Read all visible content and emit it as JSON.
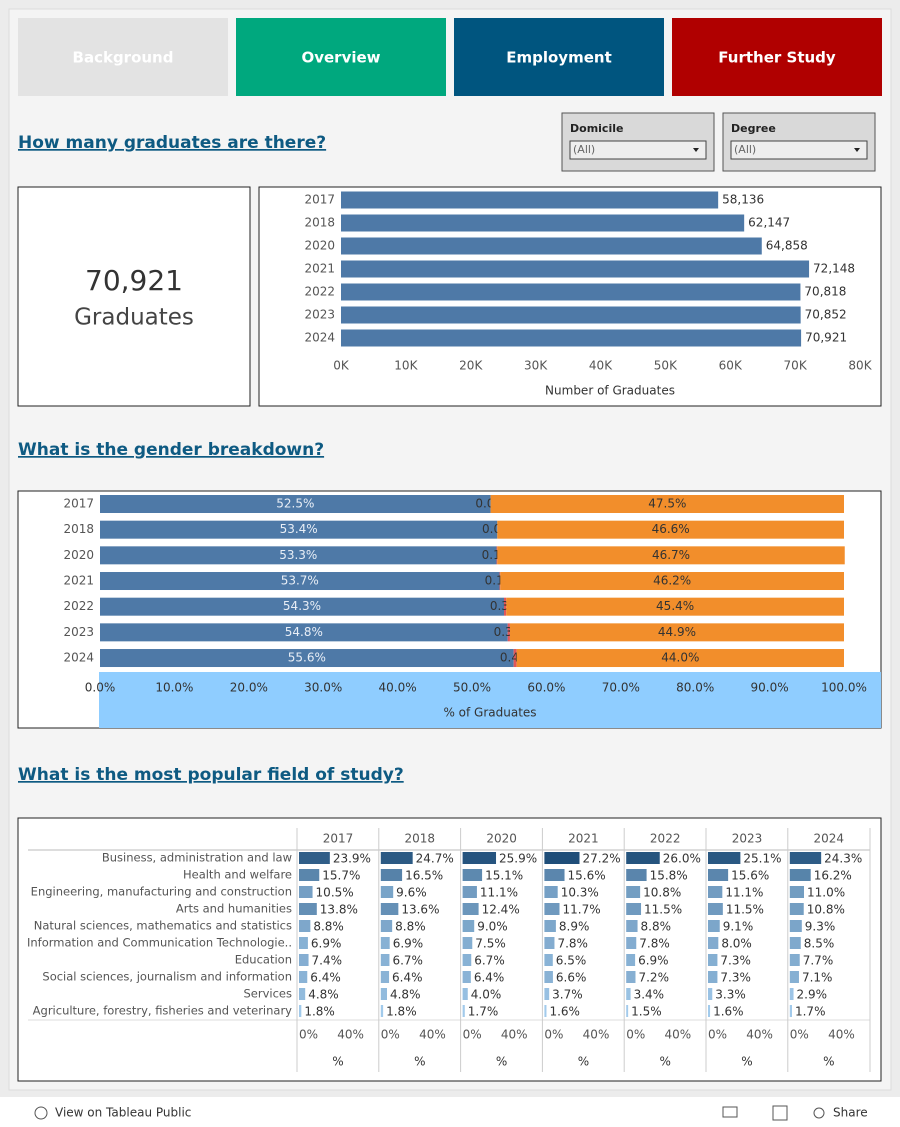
{
  "nav": [
    "Background",
    "Overview",
    "Employment",
    "Further Study"
  ],
  "headings": [
    "How many graduates are there?",
    "What is the gender breakdown?",
    "What is the most popular field of study?"
  ],
  "filters": [
    {
      "label": "Domicile",
      "value": "(All)"
    },
    {
      "label": "Degree",
      "value": "(All)"
    }
  ],
  "kpi": {
    "value": "70,921",
    "label": "Graduates"
  },
  "chart_data": [
    {
      "type": "hbar",
      "categories": [
        "2017",
        "2018",
        "2020",
        "2021",
        "2022",
        "2023",
        "2024"
      ],
      "values": [
        58136,
        62147,
        64858,
        72148,
        70818,
        70852,
        70921
      ],
      "value_labels": [
        "58,136",
        "62,147",
        "64,858",
        "72,148",
        "70,818",
        "70,852",
        "70,921"
      ],
      "color": "#4e79a7",
      "xlim": [
        0,
        80000
      ],
      "xticks": [
        {
          "value": 0,
          "label": "0K"
        },
        {
          "value": 10000,
          "label": "10K"
        },
        {
          "value": 20000,
          "label": "20K"
        },
        {
          "value": 30000,
          "label": "30K"
        },
        {
          "value": 40000,
          "label": "40K"
        },
        {
          "value": 50000,
          "label": "50K"
        },
        {
          "value": 60000,
          "label": "60K"
        },
        {
          "value": 70000,
          "label": "70K"
        },
        {
          "value": 80000,
          "label": "80K"
        }
      ],
      "x_label": "Number of Graduates"
    },
    {
      "type": "stacked-hbar",
      "categories": [
        "2017",
        "2018",
        "2020",
        "2021",
        "2022",
        "2023",
        "2024"
      ],
      "series": [
        {
          "color": "#4e79a7",
          "values": [
            52.5,
            53.4,
            53.3,
            53.7,
            54.3,
            54.8,
            55.6
          ],
          "value_labels": [
            "52.5%",
            "53.4%",
            "53.3%",
            "53.7%",
            "54.3%",
            "54.8%",
            "55.6%"
          ]
        },
        {
          "color": "#e15759",
          "values": [
            0,
            0,
            0.1,
            0.1,
            0.3,
            0.3,
            0.4
          ],
          "value_labels": [
            "0.0%",
            "0.0%",
            "0.1%",
            "0.1%",
            "0.3%",
            "0.3%",
            "0.4%"
          ]
        },
        {
          "color": "#f28e2b",
          "values": [
            47.5,
            46.6,
            46.7,
            46.2,
            45.4,
            44.9,
            44.0
          ],
          "value_labels": [
            "47.5%",
            "46.6%",
            "46.7%",
            "46.2%",
            "45.4%",
            "44.9%",
            "44.0%"
          ]
        }
      ],
      "xlim": [
        0,
        100
      ],
      "xticks": [
        {
          "value": 0,
          "label": "0.0%"
        },
        {
          "value": 10,
          "label": "10.0%"
        },
        {
          "value": 20,
          "label": "20.0%"
        },
        {
          "value": 30,
          "label": "30.0%"
        },
        {
          "value": 40,
          "label": "40.0%"
        },
        {
          "value": 50,
          "label": "50.0%"
        },
        {
          "value": 60,
          "label": "60.0%"
        },
        {
          "value": 70,
          "label": "70.0%"
        },
        {
          "value": 80,
          "label": "80.0%"
        },
        {
          "value": 90,
          "label": "90.0%"
        },
        {
          "value": 100,
          "label": "100.0%"
        }
      ],
      "x_label": "% of Graduates"
    },
    {
      "type": "small-multiples",
      "categories": [
        "Business, administration and law",
        "Health and welfare",
        "Engineering, manufacturing and construction",
        "Arts and humanities",
        "Natural sciences, mathematics and statistics",
        "Information and Communication Technologie..",
        "Education",
        "Social sciences, journalism and information",
        "Services",
        "Agriculture, forestry, fisheries and veterinary"
      ],
      "series": [
        {
          "name": "2017",
          "values": [
            23.9,
            15.7,
            10.5,
            13.8,
            8.8,
            6.9,
            7.4,
            6.4,
            4.8,
            1.8
          ],
          "value_labels": [
            "23.9%",
            "15.7%",
            "10.5%",
            "13.8%",
            "8.8%",
            "6.9%",
            "7.4%",
            "6.4%",
            "4.8%",
            "1.8%"
          ]
        },
        {
          "name": "2018",
          "values": [
            24.7,
            16.5,
            9.6,
            13.6,
            8.8,
            6.9,
            6.7,
            6.4,
            4.8,
            1.8
          ],
          "value_labels": [
            "24.7%",
            "16.5%",
            "9.6%",
            "13.6%",
            "8.8%",
            "6.9%",
            "6.7%",
            "6.4%",
            "4.8%",
            "1.8%"
          ]
        },
        {
          "name": "2020",
          "values": [
            25.9,
            15.1,
            11.1,
            12.4,
            9.0,
            7.5,
            6.7,
            6.4,
            4.0,
            1.7
          ],
          "value_labels": [
            "25.9%",
            "15.1%",
            "11.1%",
            "12.4%",
            "9.0%",
            "7.5%",
            "6.7%",
            "6.4%",
            "4.0%",
            "1.7%"
          ]
        },
        {
          "name": "2021",
          "values": [
            27.2,
            15.6,
            10.3,
            11.7,
            8.9,
            7.8,
            6.5,
            6.6,
            3.7,
            1.6
          ],
          "value_labels": [
            "27.2%",
            "15.6%",
            "10.3%",
            "11.7%",
            "8.9%",
            "7.8%",
            "6.5%",
            "6.6%",
            "3.7%",
            "1.6%"
          ]
        },
        {
          "name": "2022",
          "values": [
            26.0,
            15.8,
            10.8,
            11.5,
            8.8,
            7.8,
            6.9,
            7.2,
            3.4,
            1.5
          ],
          "value_labels": [
            "26.0%",
            "15.8%",
            "10.8%",
            "11.5%",
            "8.8%",
            "7.8%",
            "6.9%",
            "7.2%",
            "3.4%",
            "1.5%"
          ]
        },
        {
          "name": "2023",
          "values": [
            25.1,
            15.6,
            11.1,
            11.5,
            9.1,
            8.0,
            7.3,
            7.3,
            3.3,
            1.6
          ],
          "value_labels": [
            "25.1%",
            "15.6%",
            "11.1%",
            "11.5%",
            "9.1%",
            "8.0%",
            "7.3%",
            "7.3%",
            "3.3%",
            "1.6%"
          ]
        },
        {
          "name": "2024",
          "values": [
            24.3,
            16.2,
            11.0,
            10.8,
            9.3,
            8.5,
            7.7,
            7.1,
            2.9,
            1.7
          ],
          "value_labels": [
            "24.3%",
            "16.2%",
            "11.0%",
            "10.8%",
            "9.3%",
            "8.5%",
            "7.7%",
            "7.1%",
            "2.9%",
            "1.7%"
          ]
        }
      ],
      "color_scale": [
        "#a3cbec",
        "#1f4e79"
      ],
      "xlim": [
        0,
        62
      ],
      "xticks": [
        {
          "value": 0,
          "label": "0%"
        },
        {
          "value": 40,
          "label": "40%"
        }
      ],
      "x_label": "%"
    }
  ],
  "footer": {
    "link": "View on Tableau Public",
    "share": "Share"
  }
}
